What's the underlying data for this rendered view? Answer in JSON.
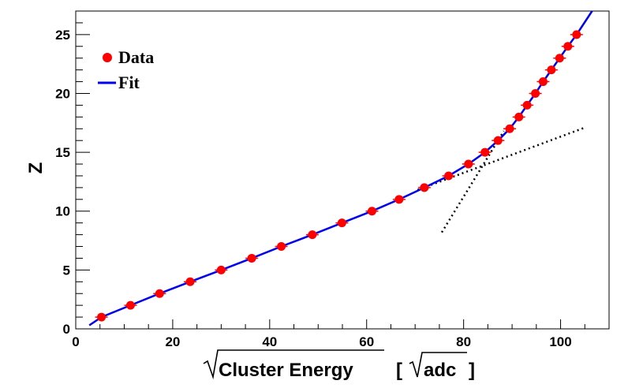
{
  "chart_data": {
    "type": "scatter",
    "xlabel": "Cluster Energy  [ adc ]",
    "xlabel_parts": {
      "main": "Cluster Energy",
      "bracket_open": "[",
      "unit": "adc",
      "bracket_close": "]"
    },
    "ylabel": "Z",
    "xlim": [
      0,
      110
    ],
    "ylim": [
      0,
      27
    ],
    "x_ticks": [
      0,
      20,
      40,
      60,
      80,
      100
    ],
    "y_ticks": [
      0,
      5,
      10,
      15,
      20,
      25
    ],
    "x_tick_labels": [
      "0",
      "20",
      "40",
      "60",
      "80",
      "100"
    ],
    "y_tick_labels": [
      "0",
      "5",
      "10",
      "15",
      "20",
      "25"
    ],
    "grid": false,
    "legend_position": "top-left",
    "legend": [
      {
        "label": "Data",
        "marker": "circle",
        "color": "#ff0000"
      },
      {
        "label": "Fit",
        "marker": "line",
        "color": "#0000ee"
      }
    ],
    "series": [
      {
        "name": "Data",
        "kind": "points",
        "color": "#ff0000",
        "points": [
          {
            "x": 5.3,
            "y": 1
          },
          {
            "x": 11.3,
            "y": 2
          },
          {
            "x": 17.3,
            "y": 3
          },
          {
            "x": 23.6,
            "y": 4
          },
          {
            "x": 30.0,
            "y": 5
          },
          {
            "x": 36.3,
            "y": 6
          },
          {
            "x": 42.4,
            "y": 7
          },
          {
            "x": 48.8,
            "y": 8
          },
          {
            "x": 54.9,
            "y": 9
          },
          {
            "x": 61.1,
            "y": 10
          },
          {
            "x": 66.7,
            "y": 11
          },
          {
            "x": 71.9,
            "y": 12
          },
          {
            "x": 76.9,
            "y": 13
          },
          {
            "x": 81.0,
            "y": 14
          },
          {
            "x": 84.4,
            "y": 15
          },
          {
            "x": 87.1,
            "y": 16
          },
          {
            "x": 89.5,
            "y": 17
          },
          {
            "x": 91.4,
            "y": 18
          },
          {
            "x": 93.1,
            "y": 19
          },
          {
            "x": 94.8,
            "y": 20
          },
          {
            "x": 96.4,
            "y": 21
          },
          {
            "x": 98.1,
            "y": 22
          },
          {
            "x": 99.8,
            "y": 23
          },
          {
            "x": 101.5,
            "y": 24
          },
          {
            "x": 103.3,
            "y": 25
          }
        ]
      },
      {
        "name": "Fit",
        "kind": "line",
        "color": "#0000ee",
        "points": [
          {
            "x": 2.8,
            "y": 0.3
          },
          {
            "x": 5.3,
            "y": 1
          },
          {
            "x": 11.3,
            "y": 2
          },
          {
            "x": 17.3,
            "y": 3
          },
          {
            "x": 23.6,
            "y": 4
          },
          {
            "x": 30.0,
            "y": 5
          },
          {
            "x": 36.3,
            "y": 6
          },
          {
            "x": 42.4,
            "y": 7
          },
          {
            "x": 48.8,
            "y": 8
          },
          {
            "x": 54.9,
            "y": 9
          },
          {
            "x": 61.1,
            "y": 10
          },
          {
            "x": 66.7,
            "y": 11
          },
          {
            "x": 71.9,
            "y": 12
          },
          {
            "x": 76.9,
            "y": 13
          },
          {
            "x": 81.0,
            "y": 14
          },
          {
            "x": 84.4,
            "y": 15
          },
          {
            "x": 87.1,
            "y": 16
          },
          {
            "x": 89.5,
            "y": 17
          },
          {
            "x": 91.4,
            "y": 18
          },
          {
            "x": 93.1,
            "y": 19
          },
          {
            "x": 94.8,
            "y": 20
          },
          {
            "x": 96.4,
            "y": 21
          },
          {
            "x": 98.1,
            "y": 22
          },
          {
            "x": 99.8,
            "y": 23
          },
          {
            "x": 101.5,
            "y": 24
          },
          {
            "x": 103.3,
            "y": 25
          },
          {
            "x": 106.5,
            "y": 27
          }
        ]
      },
      {
        "kind": "dotted-line",
        "color": "#000000",
        "points": [
          {
            "x": 70.5,
            "y": 11.8
          },
          {
            "x": 105.0,
            "y": 17.1
          }
        ]
      },
      {
        "kind": "dotted-line",
        "color": "#000000",
        "points": [
          {
            "x": 75.5,
            "y": 8.2
          },
          {
            "x": 88.3,
            "y": 16.8
          }
        ]
      }
    ]
  }
}
